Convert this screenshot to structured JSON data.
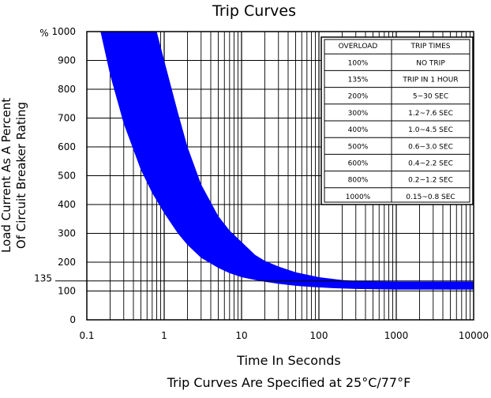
{
  "chart_data": {
    "type": "area",
    "title": "Trip Curves",
    "xlabel": "Time In Seconds",
    "ylabel_line1": "Load Current As A Percent",
    "ylabel_line2": "Of Circuit Breaker Rating",
    "footnote": "Trip Curves Are Specified at 25°C/77°F",
    "x_scale": "log",
    "xlim": [
      0.1,
      10000
    ],
    "ylim": [
      0,
      1000
    ],
    "y_unit_label": "%",
    "x_ticks": [
      {
        "value": 0.1,
        "label": "0.1"
      },
      {
        "value": 1,
        "label": "1"
      },
      {
        "value": 10,
        "label": "10"
      },
      {
        "value": 100,
        "label": "100"
      },
      {
        "value": 1000,
        "label": "1000"
      },
      {
        "value": 10000,
        "label": "10000"
      }
    ],
    "y_ticks": [
      {
        "value": 0,
        "label": "0"
      },
      {
        "value": 100,
        "label": "100"
      },
      {
        "value": 200,
        "label": "200"
      },
      {
        "value": 300,
        "label": "300"
      },
      {
        "value": 400,
        "label": "400"
      },
      {
        "value": 500,
        "label": "500"
      },
      {
        "value": 600,
        "label": "600"
      },
      {
        "value": 700,
        "label": "700"
      },
      {
        "value": 800,
        "label": "800"
      },
      {
        "value": 900,
        "label": "900"
      },
      {
        "value": 1000,
        "label": "1000"
      }
    ],
    "reference_line": {
      "value": 135,
      "label": "135"
    },
    "grid": true,
    "band_color": "#0000ff",
    "series": [
      {
        "role": "fast-boundary",
        "x": [
          0.15,
          0.2,
          0.3,
          0.5,
          0.7,
          1.0,
          1.5,
          2,
          3,
          5,
          7,
          10,
          15,
          20,
          30,
          50,
          80,
          150,
          300,
          1000,
          10000
        ],
        "y": [
          1000,
          850,
          680,
          520,
          440,
          370,
          300,
          260,
          215,
          180,
          162,
          148,
          138,
          132,
          125,
          118,
          114,
          110,
          107,
          105,
          105
        ]
      },
      {
        "role": "slow-boundary",
        "x": [
          0.8,
          1.0,
          1.5,
          2,
          3,
          5,
          7,
          10,
          15,
          20,
          30,
          50,
          100,
          200,
          300,
          1000,
          10000
        ],
        "y": [
          1000,
          900,
          720,
          600,
          470,
          360,
          310,
          270,
          225,
          205,
          185,
          165,
          148,
          138,
          135,
          133,
          133
        ]
      }
    ],
    "table": {
      "headers": [
        "OVERLOAD",
        "TRIP TIMES"
      ],
      "rows": [
        [
          "100%",
          "NO TRIP"
        ],
        [
          "135%",
          "TRIP IN 1 HOUR"
        ],
        [
          "200%",
          "5~30 SEC"
        ],
        [
          "300%",
          "1.2~7.6 SEC"
        ],
        [
          "400%",
          "1.0~4.5 SEC"
        ],
        [
          "500%",
          "0.6~3.0 SEC"
        ],
        [
          "600%",
          "0.4~2.2 SEC"
        ],
        [
          "800%",
          "0.2~1.2 SEC"
        ],
        [
          "1000%",
          "0.15~0.8 SEC"
        ]
      ]
    }
  }
}
